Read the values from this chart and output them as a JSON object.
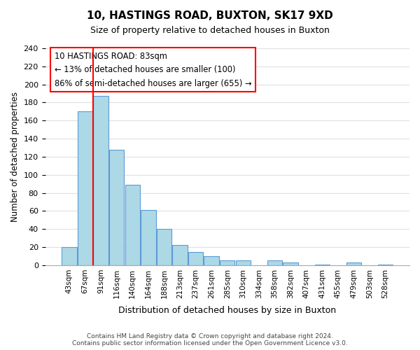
{
  "title": "10, HASTINGS ROAD, BUXTON, SK17 9XD",
  "subtitle": "Size of property relative to detached houses in Buxton",
  "xlabel": "Distribution of detached houses by size in Buxton",
  "ylabel": "Number of detached properties",
  "bar_labels": [
    "43sqm",
    "67sqm",
    "91sqm",
    "116sqm",
    "140sqm",
    "164sqm",
    "188sqm",
    "213sqm",
    "237sqm",
    "261sqm",
    "285sqm",
    "310sqm",
    "334sqm",
    "358sqm",
    "382sqm",
    "407sqm",
    "431sqm",
    "455sqm",
    "479sqm",
    "503sqm",
    "528sqm"
  ],
  "bar_values": [
    20,
    170,
    187,
    128,
    89,
    61,
    40,
    22,
    15,
    10,
    5,
    5,
    0,
    5,
    3,
    0,
    1,
    0,
    3,
    0,
    1
  ],
  "bar_color": "#add8e6",
  "bar_edge_color": "#5b9bd5",
  "ylim": [
    0,
    240
  ],
  "yticks": [
    0,
    20,
    40,
    60,
    80,
    100,
    120,
    140,
    160,
    180,
    200,
    220,
    240
  ],
  "red_line_x": 1.5,
  "annotation_title": "10 HASTINGS ROAD: 83sqm",
  "annotation_line1": "← 13% of detached houses are smaller (100)",
  "annotation_line2": "86% of semi-detached houses are larger (655) →",
  "footer_line1": "Contains HM Land Registry data © Crown copyright and database right 2024.",
  "footer_line2": "Contains public sector information licensed under the Open Government Licence v3.0.",
  "background_color": "#ffffff",
  "grid_color": "#e0e0e0"
}
